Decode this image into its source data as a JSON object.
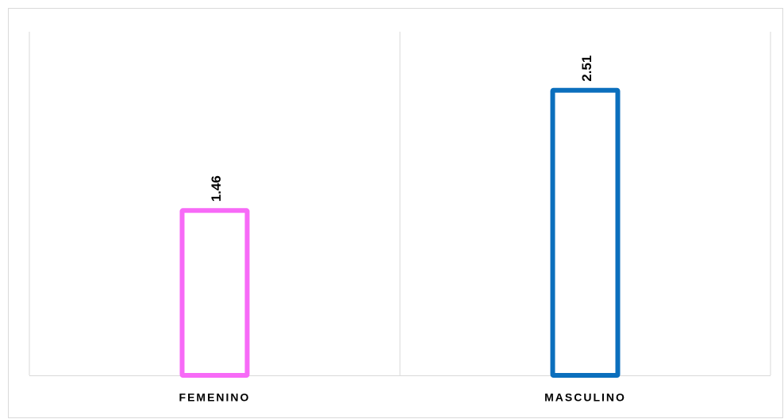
{
  "chart_data": {
    "type": "bar",
    "categories": [
      "FEMENINO",
      "MASCULINO"
    ],
    "values": [
      1.46,
      2.51
    ],
    "colors": [
      "#f76af7",
      "#0b6fbd"
    ],
    "ylim": [
      0,
      3
    ]
  }
}
